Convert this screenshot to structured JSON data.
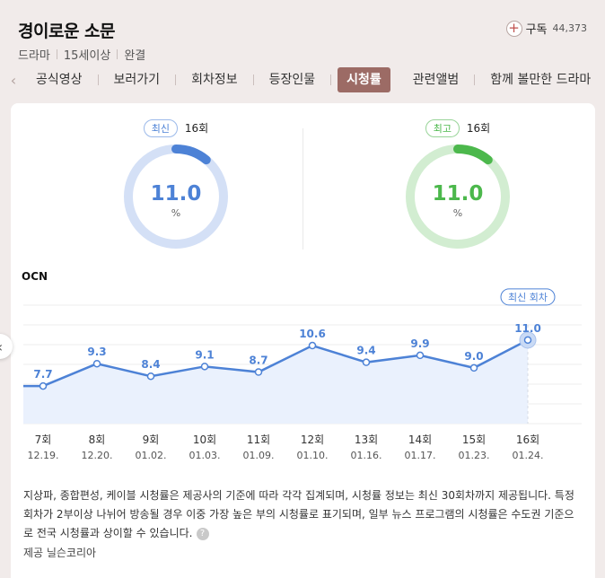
{
  "header": {
    "title": "경이로운 소문",
    "meta": [
      "드라마",
      "15세이상",
      "완결"
    ],
    "subscribe_label": "구독",
    "subscribe_count": "44,373"
  },
  "tabs": [
    {
      "label": "공식영상"
    },
    {
      "label": "보러가기"
    },
    {
      "label": "회차정보"
    },
    {
      "label": "등장인물"
    },
    {
      "label": "시청률",
      "active": true
    },
    {
      "label": "관련앨범"
    },
    {
      "label": "함께 볼만한 드라마"
    }
  ],
  "gauges": {
    "latest": {
      "badge": "최신",
      "episode": "16회",
      "value": "11.0",
      "unit": "%",
      "fraction": 0.11,
      "color": "#4d82d6",
      "track": "#d4e0f6"
    },
    "highest": {
      "badge": "최고",
      "episode": "16회",
      "value": "11.0",
      "unit": "%",
      "fraction": 0.11,
      "color": "#4cb84c",
      "track": "#d2edd1"
    }
  },
  "network": "OCN",
  "latest_tag": "최신 회차",
  "chart_data": {
    "type": "area",
    "x": [
      "7회",
      "8회",
      "9회",
      "10회",
      "11회",
      "12회",
      "13회",
      "14회",
      "15회",
      "16회"
    ],
    "dates": [
      "12.19.",
      "12.20.",
      "01.02.",
      "01.03.",
      "01.09.",
      "01.10.",
      "01.16.",
      "01.17.",
      "01.23.",
      "01.24."
    ],
    "series": [
      {
        "values": [
          7.7,
          9.3,
          8.4,
          9.1,
          8.7,
          10.6,
          9.4,
          9.9,
          9.0,
          11.0
        ]
      }
    ],
    "data_labels": [
      "7.7",
      "9.3",
      "8.4",
      "9.1",
      "8.7",
      "10.6",
      "9.4",
      "9.9",
      "9.0",
      "11.0"
    ],
    "color": "#4d82d6",
    "fill": "#eaf1fd"
  },
  "footnote": "지상파, 종합편성, 케이블 시청률은 제공사의 기준에 따라 각각 집계되며, 시청률 정보는 최신 30회차까지 제공됩니다. 특정 회차가 2부이상 나뉘어 방송될 경우 이중 가장 높은 부의 시청률로 표기되며, 일부 뉴스 프로그램의 시청률은 수도권 기준으로 전국 시청률과 상이할 수 있습니다.",
  "provider": "제공 닐슨코리아"
}
